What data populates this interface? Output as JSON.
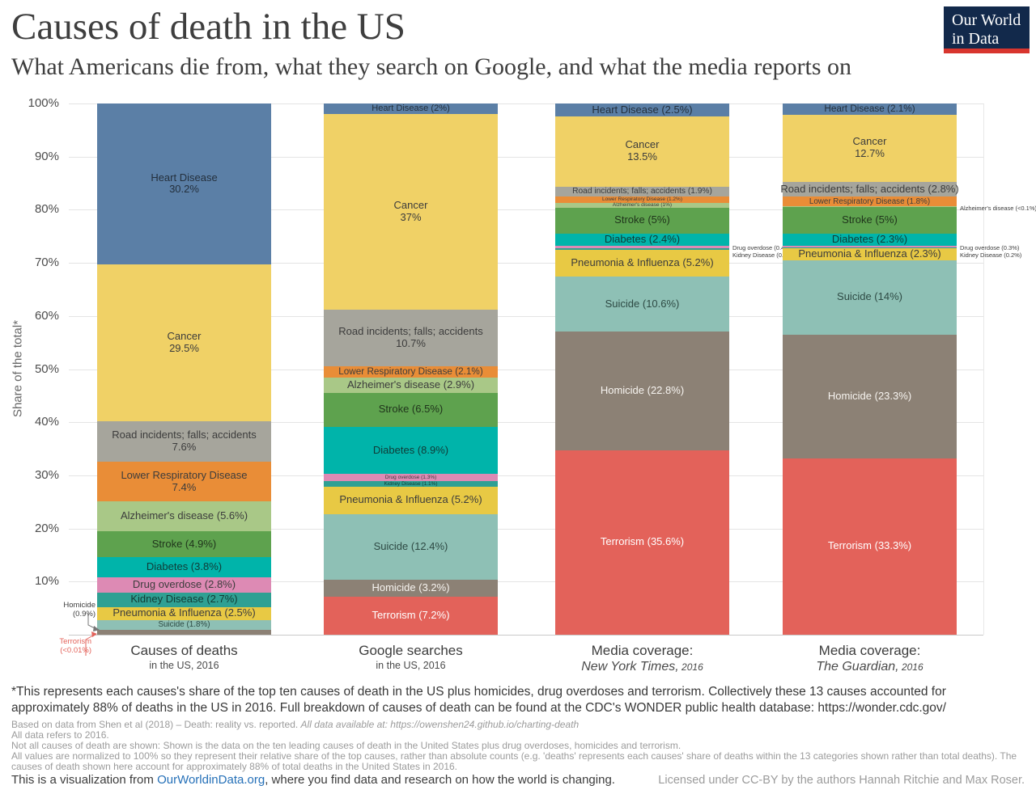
{
  "header": {
    "title": "Causes of death in the US",
    "subtitle": "What Americans die from, what they search on Google, and what the media reports on",
    "logo": {
      "line1": "Our World",
      "line2": "in Data"
    }
  },
  "chart_data": {
    "type": "bar",
    "stacked": true,
    "normalized_to": "100%",
    "ylabel": "Share of the total*",
    "yticks": [
      "100%",
      "90%",
      "80%",
      "70%",
      "60%",
      "50%",
      "40%",
      "30%",
      "20%",
      "10%"
    ],
    "palette": {
      "Heart Disease": {
        "color": "#5b7fa6",
        "text": "#24303d"
      },
      "Cancer": {
        "color": "#f0d166",
        "text": "#3c3c3c"
      },
      "Road incidents; falls; accidents": {
        "color": "#a6a59c",
        "text": "#3c3c3c"
      },
      "Lower Respiratory Disease": {
        "color": "#e98d37",
        "text": "#3c3c3c"
      },
      "Alzheimer's disease": {
        "color": "#a9c887",
        "text": "#3c3c3c"
      },
      "Stroke": {
        "color": "#5ea24e",
        "text": "#20351c"
      },
      "Diabetes": {
        "color": "#00b4aa",
        "text": "#103b37"
      },
      "Drug overdose": {
        "color": "#dd8ab4",
        "text": "#3c3c3c"
      },
      "Kidney Disease": {
        "color": "#2fa093",
        "text": "#123a33"
      },
      "Pneumonia & Influenza": {
        "color": "#e8c944",
        "text": "#3c3c3c"
      },
      "Suicide": {
        "color": "#8ec0b5",
        "text": "#2e4a44"
      },
      "Homicide": {
        "color": "#8c8175",
        "text": "#f7f4f0"
      },
      "Terrorism": {
        "color": "#e3625a",
        "text": "#ffffff"
      }
    },
    "bars": [
      {
        "id": "deaths",
        "axis_label": {
          "line1": "Causes of deaths",
          "line2": "in the US, 2016",
          "italic": false
        },
        "segments": [
          {
            "name": "Heart Disease",
            "value": 30.2,
            "label": [
              "Heart Disease",
              "30.2%"
            ]
          },
          {
            "name": "Cancer",
            "value": 29.5,
            "label": [
              "Cancer",
              "29.5%"
            ]
          },
          {
            "name": "Road incidents; falls; accidents",
            "value": 7.6,
            "label": [
              "Road incidents; falls; accidents",
              "7.6%"
            ]
          },
          {
            "name": "Lower Respiratory Disease",
            "value": 7.4,
            "label": [
              "Lower Respiratory Disease",
              "7.4%"
            ]
          },
          {
            "name": "Alzheimer's disease",
            "value": 5.6,
            "label": [
              "Alzheimer's disease (5.6%)"
            ]
          },
          {
            "name": "Stroke",
            "value": 4.9,
            "label": [
              "Stroke (4.9%)"
            ]
          },
          {
            "name": "Diabetes",
            "value": 3.8,
            "label": [
              "Diabetes (3.8%)"
            ]
          },
          {
            "name": "Drug overdose",
            "value": 2.8,
            "label": [
              "Drug overdose (2.8%)"
            ]
          },
          {
            "name": "Kidney Disease",
            "value": 2.7,
            "label": [
              "Kidney Disease (2.7%)"
            ]
          },
          {
            "name": "Pneumonia & Influenza",
            "value": 2.5,
            "label": [
              "Pneumonia & Influenza (2.5%)"
            ]
          },
          {
            "name": "Suicide",
            "value": 1.8,
            "label": [
              "Suicide (1.8%)"
            ]
          },
          {
            "name": "Homicide",
            "value": 0.9,
            "label": []
          },
          {
            "name": "Terrorism",
            "value": 0.01,
            "label": []
          }
        ],
        "annotations": [
          {
            "segment": "Homicide",
            "side": "left",
            "color": "#3c3c3c",
            "lines": [
              "Homicide",
              "(0.9%)"
            ]
          },
          {
            "segment": "Terrorism",
            "side": "below-left",
            "color": "#e3625a",
            "lines": [
              "Terrorism",
              "(<0.01%)"
            ]
          }
        ]
      },
      {
        "id": "google",
        "axis_label": {
          "line1": "Google searches",
          "line2": "in the US, 2016",
          "italic": false
        },
        "segments": [
          {
            "name": "Heart Disease",
            "value": 2.0,
            "label": [
              "Heart Disease (2%)"
            ]
          },
          {
            "name": "Cancer",
            "value": 37.0,
            "label": [
              "Cancer",
              "37%"
            ]
          },
          {
            "name": "Road incidents; falls; accidents",
            "value": 10.7,
            "label": [
              "Road incidents; falls; accidents",
              "10.7%"
            ]
          },
          {
            "name": "Lower Respiratory Disease",
            "value": 2.1,
            "label": [
              "Lower Respiratory Disease (2.1%)"
            ]
          },
          {
            "name": "Alzheimer's disease",
            "value": 2.9,
            "label": [
              "Alzheimer's disease (2.9%)"
            ]
          },
          {
            "name": "Stroke",
            "value": 6.5,
            "label": [
              "Stroke (6.5%)"
            ]
          },
          {
            "name": "Diabetes",
            "value": 8.9,
            "label": [
              "Diabetes (8.9%)"
            ]
          },
          {
            "name": "Drug overdose",
            "value": 1.3,
            "label": [
              "Drug overdose (1.3%)"
            ]
          },
          {
            "name": "Kidney Disease",
            "value": 1.1,
            "label": [
              "Kidney Disease (1.1%)"
            ]
          },
          {
            "name": "Pneumonia & Influenza",
            "value": 5.2,
            "label": [
              "Pneumonia & Influenza (5.2%)"
            ]
          },
          {
            "name": "Suicide",
            "value": 12.4,
            "label": [
              "Suicide (12.4%)"
            ]
          },
          {
            "name": "Homicide",
            "value": 3.2,
            "label": [
              "Homicide (3.2%)"
            ]
          },
          {
            "name": "Terrorism",
            "value": 7.2,
            "label": [
              "Terrorism (7.2%)"
            ]
          }
        ],
        "annotations": []
      },
      {
        "id": "nyt",
        "axis_label": {
          "line1": "Media coverage:",
          "line2": "New York Times,",
          "year": "2016",
          "italic": true
        },
        "segments": [
          {
            "name": "Heart Disease",
            "value": 2.5,
            "label": [
              "Heart Disease (2.5%)"
            ]
          },
          {
            "name": "Cancer",
            "value": 13.5,
            "label": [
              "Cancer",
              "13.5%"
            ]
          },
          {
            "name": "Road incidents; falls; accidents",
            "value": 1.9,
            "label": [
              "Road incidents; falls; accidents (1.9%)"
            ]
          },
          {
            "name": "Lower Respiratory Disease",
            "value": 1.2,
            "label": [
              "Lower Respiratory Disease (1.2%)"
            ]
          },
          {
            "name": "Alzheimer's disease",
            "value": 1.0,
            "label": [
              "Alzheimer's disease (1%)"
            ]
          },
          {
            "name": "Stroke",
            "value": 5.0,
            "label": [
              "Stroke (5%)"
            ]
          },
          {
            "name": "Diabetes",
            "value": 2.4,
            "label": [
              "Diabetes (2.4%)"
            ]
          },
          {
            "name": "Drug overdose",
            "value": 0.4,
            "label": []
          },
          {
            "name": "Kidney Disease",
            "value": 0.3,
            "label": []
          },
          {
            "name": "Pneumonia & Influenza",
            "value": 5.2,
            "label": [
              "Pneumonia & Influenza (5.2%)"
            ]
          },
          {
            "name": "Suicide",
            "value": 10.6,
            "label": [
              "Suicide (10.6%)"
            ]
          },
          {
            "name": "Homicide",
            "value": 22.8,
            "label": [
              "Homicide (22.8%)"
            ]
          },
          {
            "name": "Terrorism",
            "value": 35.6,
            "label": [
              "Terrorism (35.6%)"
            ]
          }
        ],
        "annotations": [
          {
            "segment": "Drug overdose",
            "side": "right",
            "color": "#3c3c3c",
            "lines": [
              "Drug overdose (0.4%)",
              "Kidney Disease (0.3%)"
            ]
          }
        ]
      },
      {
        "id": "guardian",
        "axis_label": {
          "line1": "Media coverage:",
          "line2": "The Guardian,",
          "year": "2016",
          "italic": true
        },
        "segments": [
          {
            "name": "Heart Disease",
            "value": 2.1,
            "label": [
              "Heart Disease (2.1%)"
            ]
          },
          {
            "name": "Cancer",
            "value": 12.7,
            "label": [
              "Cancer",
              "12.7%"
            ]
          },
          {
            "name": "Road incidents; falls; accidents",
            "value": 2.8,
            "label": [
              "Road incidents; falls; accidents (2.8%)"
            ]
          },
          {
            "name": "Lower Respiratory Disease",
            "value": 1.8,
            "label": [
              "Lower Respiratory Disease (1.8%)"
            ]
          },
          {
            "name": "Alzheimer's disease",
            "value": 0.1,
            "label": []
          },
          {
            "name": "Stroke",
            "value": 5.0,
            "label": [
              "Stroke (5%)"
            ]
          },
          {
            "name": "Diabetes",
            "value": 2.3,
            "label": [
              "Diabetes (2.3%)"
            ]
          },
          {
            "name": "Drug overdose",
            "value": 0.3,
            "label": []
          },
          {
            "name": "Kidney Disease",
            "value": 0.2,
            "label": []
          },
          {
            "name": "Pneumonia & Influenza",
            "value": 2.3,
            "label": [
              "Pneumonia & Influenza (2.3%)"
            ]
          },
          {
            "name": "Suicide",
            "value": 14.0,
            "label": [
              "Suicide (14%)"
            ]
          },
          {
            "name": "Homicide",
            "value": 23.3,
            "label": [
              "Homicide (23.3%)"
            ]
          },
          {
            "name": "Terrorism",
            "value": 33.3,
            "label": [
              "Terrorism (33.3%)"
            ]
          }
        ],
        "annotations": [
          {
            "segment": "Alzheimer's disease",
            "side": "right",
            "color": "#3c3c3c",
            "lines": [
              "Alzheimer's disease (<0.1%)"
            ]
          },
          {
            "segment": "Drug overdose",
            "side": "right",
            "color": "#3c3c3c",
            "lines": [
              "Drug overdose (0.3%)",
              "Kidney Disease (0.2%)"
            ]
          }
        ]
      }
    ]
  },
  "footnote": {
    "text": "*This represents each causes's share of the top ten causes of death in the US plus homicides, drug overdoses and terrorism. Collectively these 13 causes accounted for approximately 88% of deaths in the US in 2016. Full breakdown of causes of death can be found at the CDC's WONDER public health database: https://wonder.cdc.gov/"
  },
  "sources": {
    "line1_normal": "Based on data from Shen et al (2018) – Death: reality vs. reported. ",
    "line1_italic": "All data available at: https://owenshen24.github.io/charting-death",
    "line2": "All data refers to 2016.",
    "line3": "Not all causes of death are shown: Shown is the data on the ten leading causes of death in the United States plus drug overdoses, homicides and terrorism.",
    "line4": "All values are normalized to 100% so they represent their relative share of the top causes, rather than absolute counts (e.g. 'deaths' represents each causes' share of deaths within the 13 categories shown rather than total deaths). The causes of death shown here account for approximately 88% of total deaths in the United States in 2016."
  },
  "footer": {
    "left_prefix": "This is a visualization from ",
    "left_link": "OurWorldinData.org",
    "left_suffix": ", where you find data and research on how the world is changing.",
    "right_prefix": "Licensed under ",
    "right_link": "CC-BY",
    "right_suffix": " by the authors Hannah Ritchie and Max Roser."
  }
}
